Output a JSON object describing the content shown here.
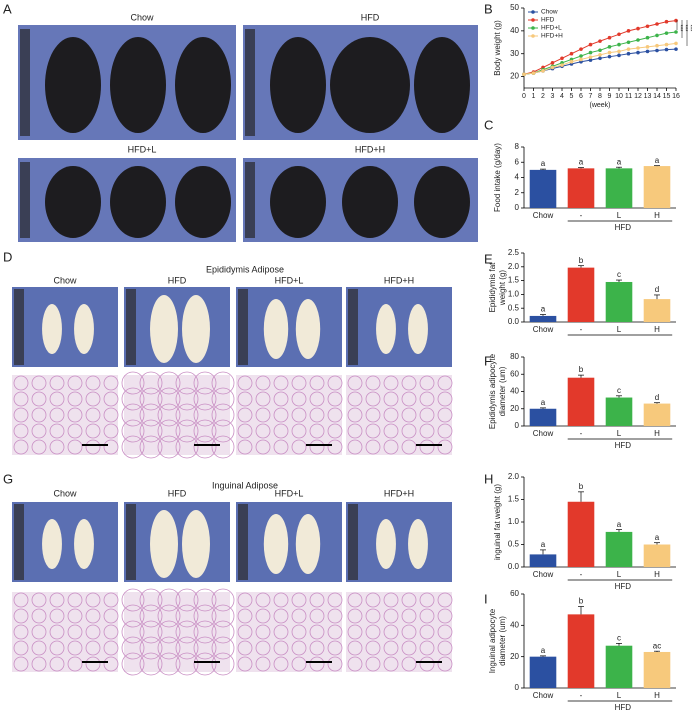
{
  "panel_letters": [
    "A",
    "B",
    "C",
    "D",
    "E",
    "F",
    "G",
    "H",
    "I"
  ],
  "photo_panels": [
    {
      "labels": [
        "Chow",
        "HFD",
        "HFD+L",
        "HFD+H"
      ]
    },
    {
      "title": "Epididymis Adipose",
      "labels": [
        "Chow",
        "HFD",
        "HFD+L",
        "HFD+H"
      ]
    },
    {
      "title": "Inguinal Adipose",
      "labels": [
        "Chow",
        "HFD",
        "HFD+L",
        "HFD+H"
      ]
    }
  ],
  "chart_data": [
    {
      "type": "line",
      "ylabel": [
        "Body weight (g)"
      ],
      "xlabel": "(week)",
      "x": [
        0,
        1,
        2,
        3,
        4,
        5,
        6,
        7,
        8,
        9,
        10,
        11,
        12,
        13,
        14,
        15,
        16
      ],
      "xlim": [
        0,
        16
      ],
      "xticks": [
        0,
        1,
        2,
        3,
        4,
        5,
        6,
        7,
        8,
        9,
        10,
        11,
        12,
        13,
        14,
        15,
        16
      ],
      "ylim": [
        15,
        50
      ],
      "yticks": [
        20,
        30,
        40,
        50
      ],
      "legend": "upper-left",
      "annotations": [
        "***",
        "***",
        "***"
      ],
      "series": [
        {
          "name": "Chow",
          "color": "#2b50a1",
          "values": [
            21,
            21.5,
            22.5,
            23.5,
            24.5,
            25.5,
            26.5,
            27.2,
            28,
            28.7,
            29.3,
            30,
            30.5,
            31,
            31.4,
            31.8,
            32
          ]
        },
        {
          "name": "HFD",
          "color": "#e2392b",
          "values": [
            21,
            22,
            24,
            26,
            28,
            30,
            32,
            34,
            35.5,
            37,
            38.5,
            40,
            41,
            42,
            43,
            44,
            44.5
          ]
        },
        {
          "name": "HFD+L",
          "color": "#3cb34a",
          "values": [
            21,
            21.5,
            23,
            24.5,
            26,
            27.5,
            29,
            30.5,
            31.5,
            33,
            34,
            35,
            36,
            37,
            38,
            39,
            39.5
          ]
        },
        {
          "name": "HFD+H",
          "color": "#f7c97c",
          "values": [
            21,
            21.5,
            22.5,
            24,
            25,
            26.5,
            27.5,
            28.5,
            29.5,
            30.5,
            31,
            32,
            32.5,
            33,
            33.5,
            34,
            34.5
          ]
        }
      ]
    },
    {
      "type": "bar",
      "ylabel": [
        "Food intake (g/day)"
      ],
      "categories": [
        "Chow",
        "-",
        "L",
        "H"
      ],
      "group_label": "HFD",
      "values": [
        5.0,
        5.2,
        5.2,
        5.5
      ],
      "errors": [
        0.1,
        0.1,
        0.15,
        0.05
      ],
      "annotations": [
        "a",
        "a",
        "a",
        "a"
      ],
      "colors": [
        "#2b50a1",
        "#e2392b",
        "#3cb34a",
        "#f7c97c"
      ],
      "ylim": [
        0,
        8
      ],
      "yticks": [
        0,
        2,
        4,
        6,
        8
      ]
    },
    {
      "type": "bar",
      "ylabel": [
        "Epididymis fat",
        "weight (g)"
      ],
      "categories": [
        "Chow",
        "-",
        "L",
        "H"
      ],
      "values": [
        0.22,
        1.97,
        1.45,
        0.83
      ],
      "errors": [
        0.05,
        0.07,
        0.07,
        0.15
      ],
      "annotations": [
        "a",
        "b",
        "c",
        "d"
      ],
      "colors": [
        "#2b50a1",
        "#e2392b",
        "#3cb34a",
        "#f7c97c"
      ],
      "ylim": [
        0,
        2.5
      ],
      "yticks": [
        {
          "value": 0,
          "label": "0.0"
        },
        0.5,
        {
          "value": 1,
          "label": "1.0"
        },
        1.5,
        {
          "value": 2,
          "label": "2.0"
        },
        2.5
      ]
    },
    {
      "type": "bar",
      "ylabel": [
        "Epididymis adipocyte",
        "diameter (um)"
      ],
      "categories": [
        "Chow",
        "-",
        "L",
        "H"
      ],
      "group_label": "HFD",
      "values": [
        20,
        56,
        33,
        26
      ],
      "errors": [
        1,
        3,
        2,
        1
      ],
      "annotations": [
        "a",
        "b",
        "c",
        "d"
      ],
      "colors": [
        "#2b50a1",
        "#e2392b",
        "#3cb34a",
        "#f7c97c"
      ],
      "ylim": [
        0,
        80
      ],
      "yticks": [
        0,
        20,
        40,
        60,
        80
      ]
    },
    {
      "type": "bar",
      "ylabel": [
        "inguinal fat weight (g)"
      ],
      "categories": [
        "Chow",
        "-",
        "L",
        "H"
      ],
      "group_label": "HFD",
      "values": [
        0.28,
        1.45,
        0.78,
        0.5
      ],
      "errors": [
        0.1,
        0.22,
        0.05,
        0.04
      ],
      "annotations": [
        "a",
        "b",
        "a",
        "a"
      ],
      "colors": [
        "#2b50a1",
        "#e2392b",
        "#3cb34a",
        "#f7c97c"
      ],
      "ylim": [
        0,
        2
      ],
      "yticks": [
        {
          "value": 0,
          "label": "0.0"
        },
        0.5,
        {
          "value": 1,
          "label": "1.0"
        },
        1.5,
        {
          "value": 2,
          "label": "2.0"
        }
      ]
    },
    {
      "type": "bar",
      "ylabel": [
        "Inguinal adipocyte",
        "diameter (um)"
      ],
      "categories": [
        "Chow",
        "-",
        "L",
        "H"
      ],
      "group_label": "HFD",
      "values": [
        20,
        47,
        27,
        23
      ],
      "errors": [
        0.5,
        5,
        1.5,
        0.5
      ],
      "annotations": [
        "a",
        "b",
        "c",
        "ac"
      ],
      "colors": [
        "#2b50a1",
        "#e2392b",
        "#3cb34a",
        "#f7c97c"
      ],
      "ylim": [
        0,
        60
      ],
      "yticks": [
        0,
        20,
        40,
        60
      ]
    }
  ]
}
